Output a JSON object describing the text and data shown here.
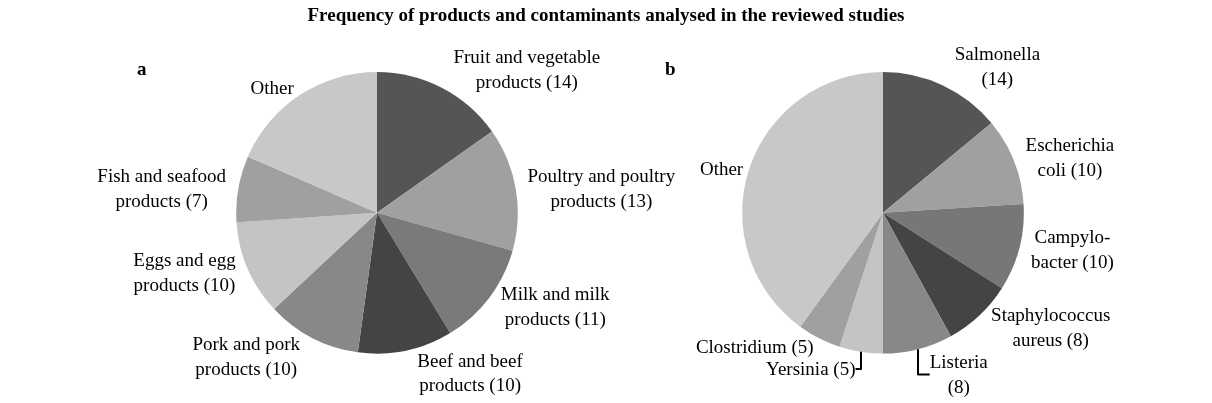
{
  "chart_data": [
    {
      "type": "pie",
      "title": "Frequency of products and contaminants analysed in the reviewed studies",
      "annotations": [
        "a"
      ],
      "categories": [
        "Fruit and vegetable\nproducts (14)",
        "Poultry and poultry\nproducts (13)",
        "Milk and milk\nproducts (11)",
        "Beef and beef\nproducts (10)",
        "Pork and pork\nproducts (10)",
        "Eggs and egg\nproducts (10)",
        "Fish and seafood\nproducts (7)",
        "Other"
      ],
      "values": [
        14,
        13,
        11,
        10,
        10,
        10,
        7,
        17
      ],
      "colors": [
        "#555555",
        "#a0a0a0",
        "#7a7a7a",
        "#444444",
        "#888888",
        "#c4c4c4",
        "#a0a0a0",
        "#c8c8c8"
      ]
    },
    {
      "type": "pie",
      "annotations": [
        "b"
      ],
      "categories": [
        "Salmonella\n(14)",
        "Escherichia\ncoli (10)",
        "Campylo-\nbacter (10)",
        "Staphylococcus\naureus (8)",
        "Listeria\n(8)",
        "Yersinia (5)",
        "Clostridium (5)",
        "Other"
      ],
      "values": [
        14,
        10,
        10,
        8,
        8,
        5,
        5,
        40
      ],
      "colors": [
        "#555555",
        "#a0a0a0",
        "#777777",
        "#444444",
        "#888888",
        "#c4c4c4",
        "#a0a0a0",
        "#c8c8c8"
      ]
    }
  ]
}
